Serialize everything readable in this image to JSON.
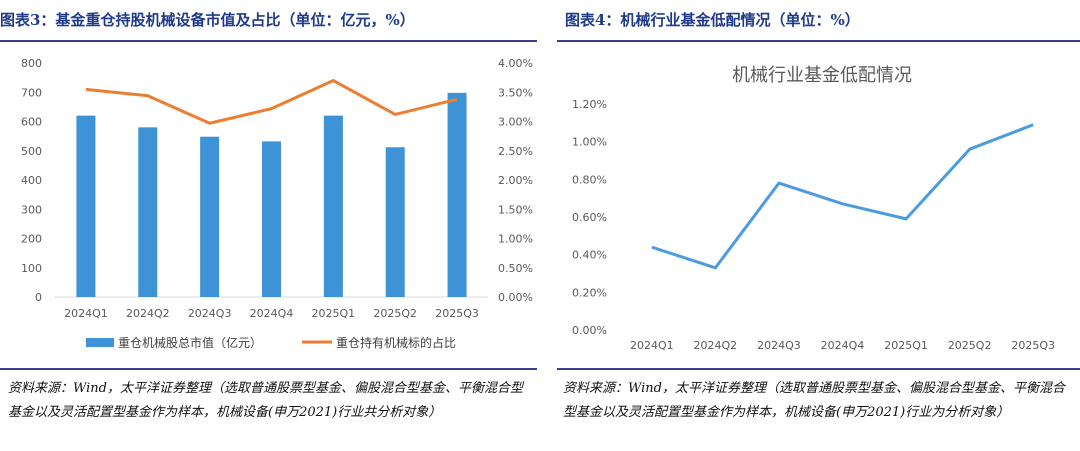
{
  "left": {
    "figure_title": "图表3：基金重仓持股机械设备市值及占比（单位：亿元，%）",
    "source": "资料来源：Wind，太平洋证券整理（选取普通股票型基金、偏股混合型基金、平衡混合型基金以及灵活配置型基金作为样本，机械设备(申万2021)行业共分析对象）"
  },
  "right": {
    "figure_title": "图表4：机械行业基金低配情况（单位：%）",
    "source": "资料来源：Wind，太平洋证券整理（选取普通股票型基金、偏股混合型基金、平衡混合型基金以及灵活配置型基金作为样本，机械设备(申万2021)行业为分析对象）"
  },
  "colors": {
    "title": "#1f3a8a",
    "rule": "#3b3f8f",
    "bar": "#3d93d5",
    "line": "#ed7d31",
    "line_right": "#4a9be0"
  },
  "chart_data": [
    {
      "type": "bar+line",
      "title": "",
      "categories": [
        "2024Q1",
        "2024Q2",
        "2024Q3",
        "2024Q4",
        "2025Q1",
        "2025Q2",
        "2025Q3"
      ],
      "series": [
        {
          "name": "重仓机械股总市值（亿元）",
          "type": "bar",
          "axis": "left",
          "values": [
            620,
            580,
            548,
            532,
            620,
            512,
            698
          ]
        },
        {
          "name": "重仓持有机械标的占比",
          "type": "line",
          "axis": "right",
          "values": [
            3.55,
            3.44,
            2.97,
            3.22,
            3.7,
            3.12,
            3.38
          ]
        }
      ],
      "y_left": {
        "ylim": [
          0,
          800
        ],
        "ticks": [
          "0",
          "100",
          "200",
          "300",
          "400",
          "500",
          "600",
          "700",
          "800"
        ]
      },
      "y_right": {
        "ylim": [
          0,
          4
        ],
        "ticks": [
          "0.00%",
          "0.50%",
          "1.00%",
          "1.50%",
          "2.00%",
          "2.50%",
          "3.00%",
          "3.50%",
          "4.00%"
        ]
      },
      "legend_position": "bottom"
    },
    {
      "type": "line",
      "title": "机械行业基金低配情况",
      "categories": [
        "2024Q1",
        "2024Q2",
        "2024Q3",
        "2024Q4",
        "2025Q1",
        "2025Q2",
        "2025Q3"
      ],
      "series": [
        {
          "name": "机械行业基金低配情况",
          "values": [
            0.44,
            0.33,
            0.78,
            0.67,
            0.59,
            0.96,
            1.09
          ]
        }
      ],
      "ylim": [
        0,
        1.2
      ],
      "yticks": [
        "0.00%",
        "0.20%",
        "0.40%",
        "0.60%",
        "0.80%",
        "1.00%",
        "1.20%"
      ],
      "grid": false
    }
  ]
}
